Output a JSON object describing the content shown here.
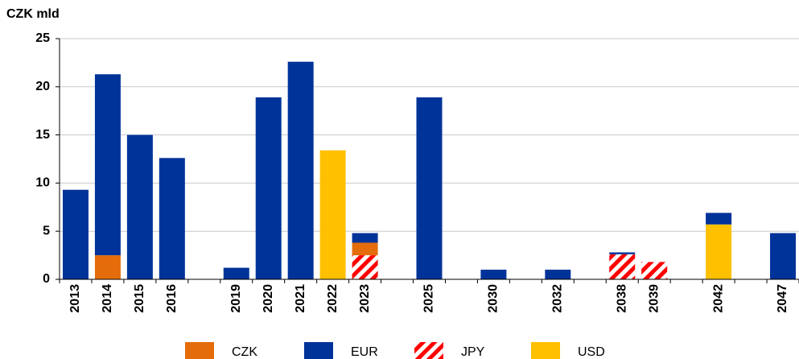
{
  "chart_data": {
    "type": "bar",
    "stacked": true,
    "y_label": "CZK mld",
    "categories": [
      "2013",
      "2014",
      "2015",
      "2016",
      null,
      "2019",
      "2020",
      "2021",
      "2022",
      "2023",
      null,
      "2025",
      null,
      "2030",
      null,
      "2032",
      null,
      "2038",
      "2039",
      null,
      "2042",
      null,
      "2047"
    ],
    "series": [
      {
        "name": "CZK",
        "color": "#e46c0a",
        "values": [
          null,
          2.5,
          null,
          null,
          null,
          null,
          null,
          null,
          null,
          1.3,
          null,
          null,
          null,
          null,
          null,
          null,
          null,
          null,
          null,
          null,
          null,
          null,
          null
        ]
      },
      {
        "name": "EUR",
        "color": "#003399",
        "values": [
          9.3,
          18.8,
          15.0,
          12.6,
          null,
          1.2,
          18.9,
          22.6,
          null,
          1.0,
          null,
          18.9,
          null,
          1.0,
          null,
          1.0,
          null,
          0.2,
          null,
          null,
          1.2,
          null,
          4.8
        ]
      },
      {
        "name": "JPY",
        "color": "#ff0000",
        "pattern": "hatch",
        "values": [
          null,
          null,
          null,
          null,
          null,
          null,
          null,
          null,
          null,
          2.5,
          null,
          null,
          null,
          null,
          null,
          null,
          null,
          2.6,
          1.8,
          null,
          null,
          null,
          null
        ]
      },
      {
        "name": "USD",
        "color": "#ffc000",
        "values": [
          null,
          null,
          null,
          null,
          null,
          null,
          null,
          null,
          13.4,
          null,
          null,
          null,
          null,
          null,
          null,
          null,
          null,
          null,
          null,
          null,
          5.7,
          null,
          null
        ]
      }
    ],
    "ylim": [
      0,
      25
    ],
    "yticks": [
      0,
      5,
      10,
      15,
      20,
      25
    ],
    "grid": true,
    "legend": "bottom"
  }
}
